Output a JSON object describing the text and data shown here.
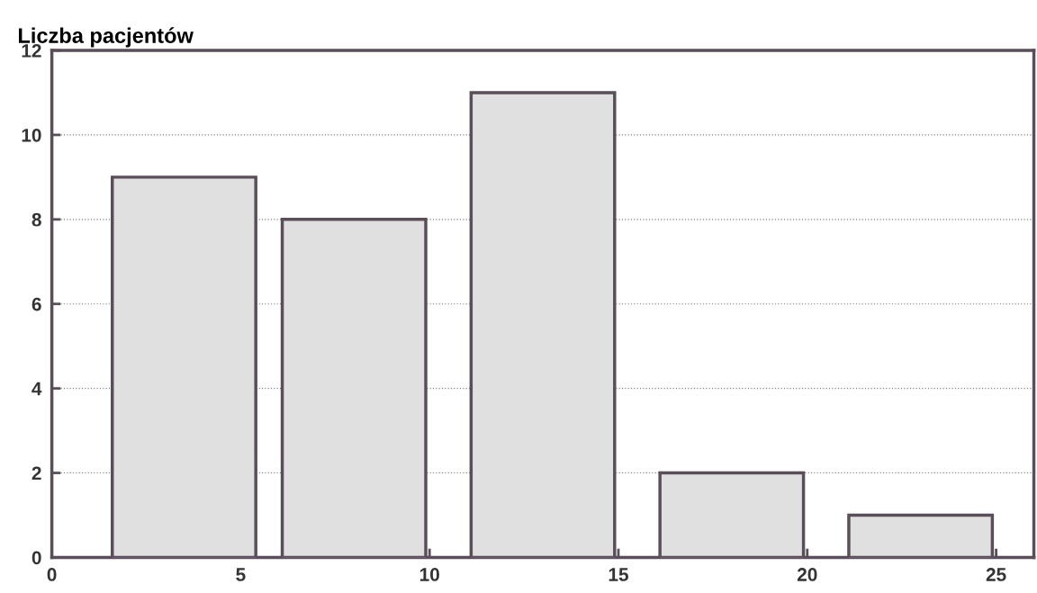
{
  "chart_data": {
    "type": "bar",
    "title": "Liczba pacjentów",
    "x": [
      3.5,
      8,
      13,
      18,
      23
    ],
    "values": [
      9,
      8,
      11,
      2,
      1
    ],
    "color": "#e0e0e0",
    "xlim": [
      0,
      26
    ],
    "xticks": [
      0,
      5,
      10,
      15,
      20,
      25
    ],
    "ylim": [
      0,
      12
    ],
    "yticks": [
      0,
      2,
      4,
      6,
      8,
      10,
      12
    ],
    "grid": "y"
  }
}
